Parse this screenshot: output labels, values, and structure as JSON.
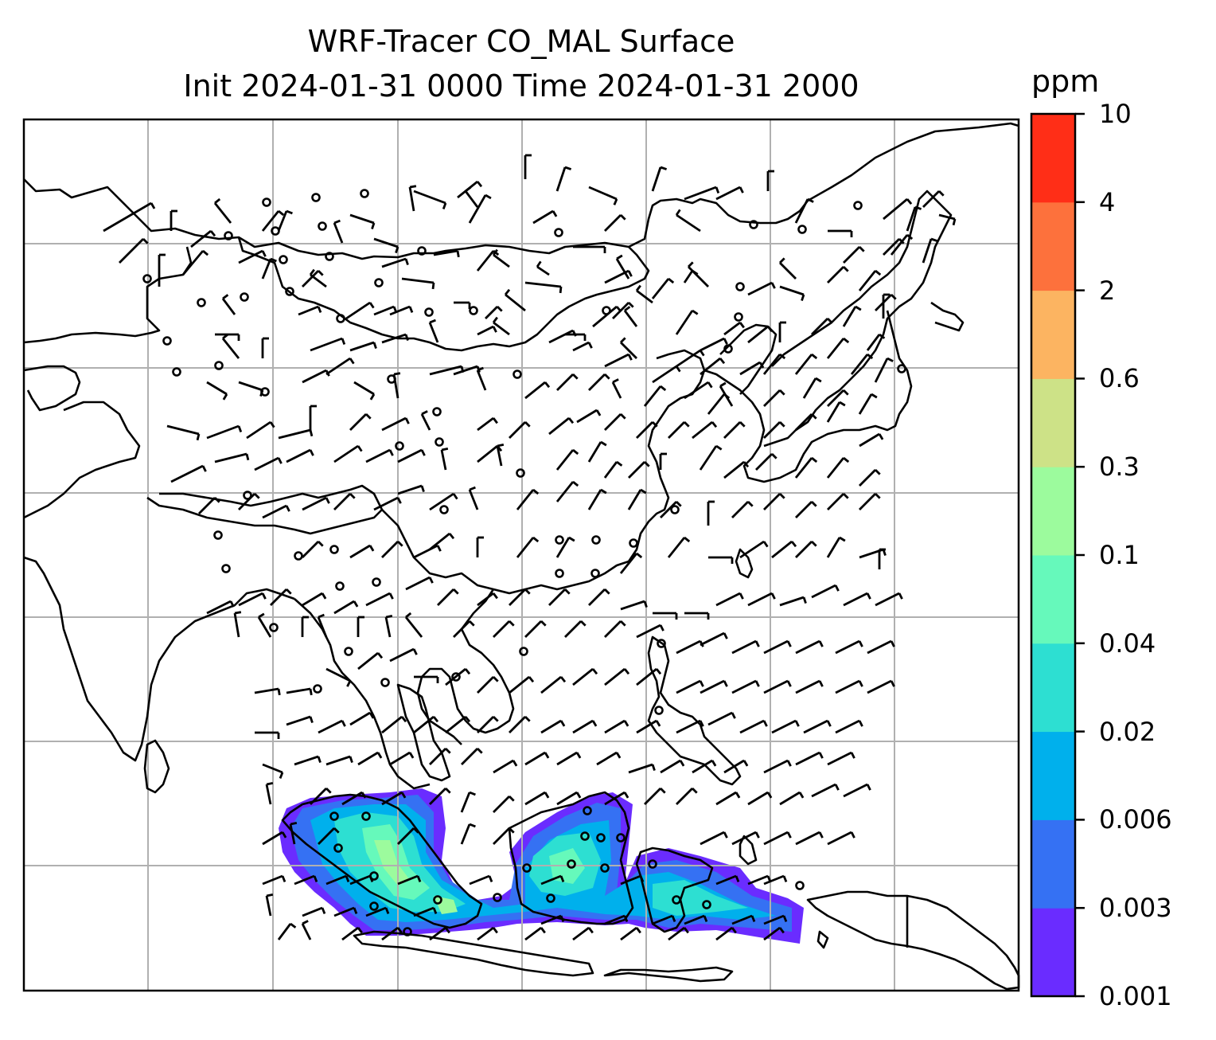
{
  "title": {
    "line1": "WRF-Tracer CO_MAL Surface",
    "line2": "Init 2024-01-31 0000 Time 2024-01-31 2000"
  },
  "colorbar": {
    "unit": "ppm",
    "ticks": [
      "0.001",
      "0.003",
      "0.006",
      "0.02",
      "0.04",
      "0.1",
      "0.3",
      "0.6",
      "2",
      "4",
      "10"
    ],
    "colors": [
      "#6a2cff",
      "#3571f3",
      "#00b0ec",
      "#2ddfd2",
      "#66f9bb",
      "#9cfb9d",
      "#cde287",
      "#fcb461",
      "#fd713c",
      "#ff2e17"
    ]
  },
  "map": {
    "line_color": "#000000",
    "grid_color": "#b0b0b0",
    "wind_barbs": "black",
    "calm_marker": "circle"
  }
}
